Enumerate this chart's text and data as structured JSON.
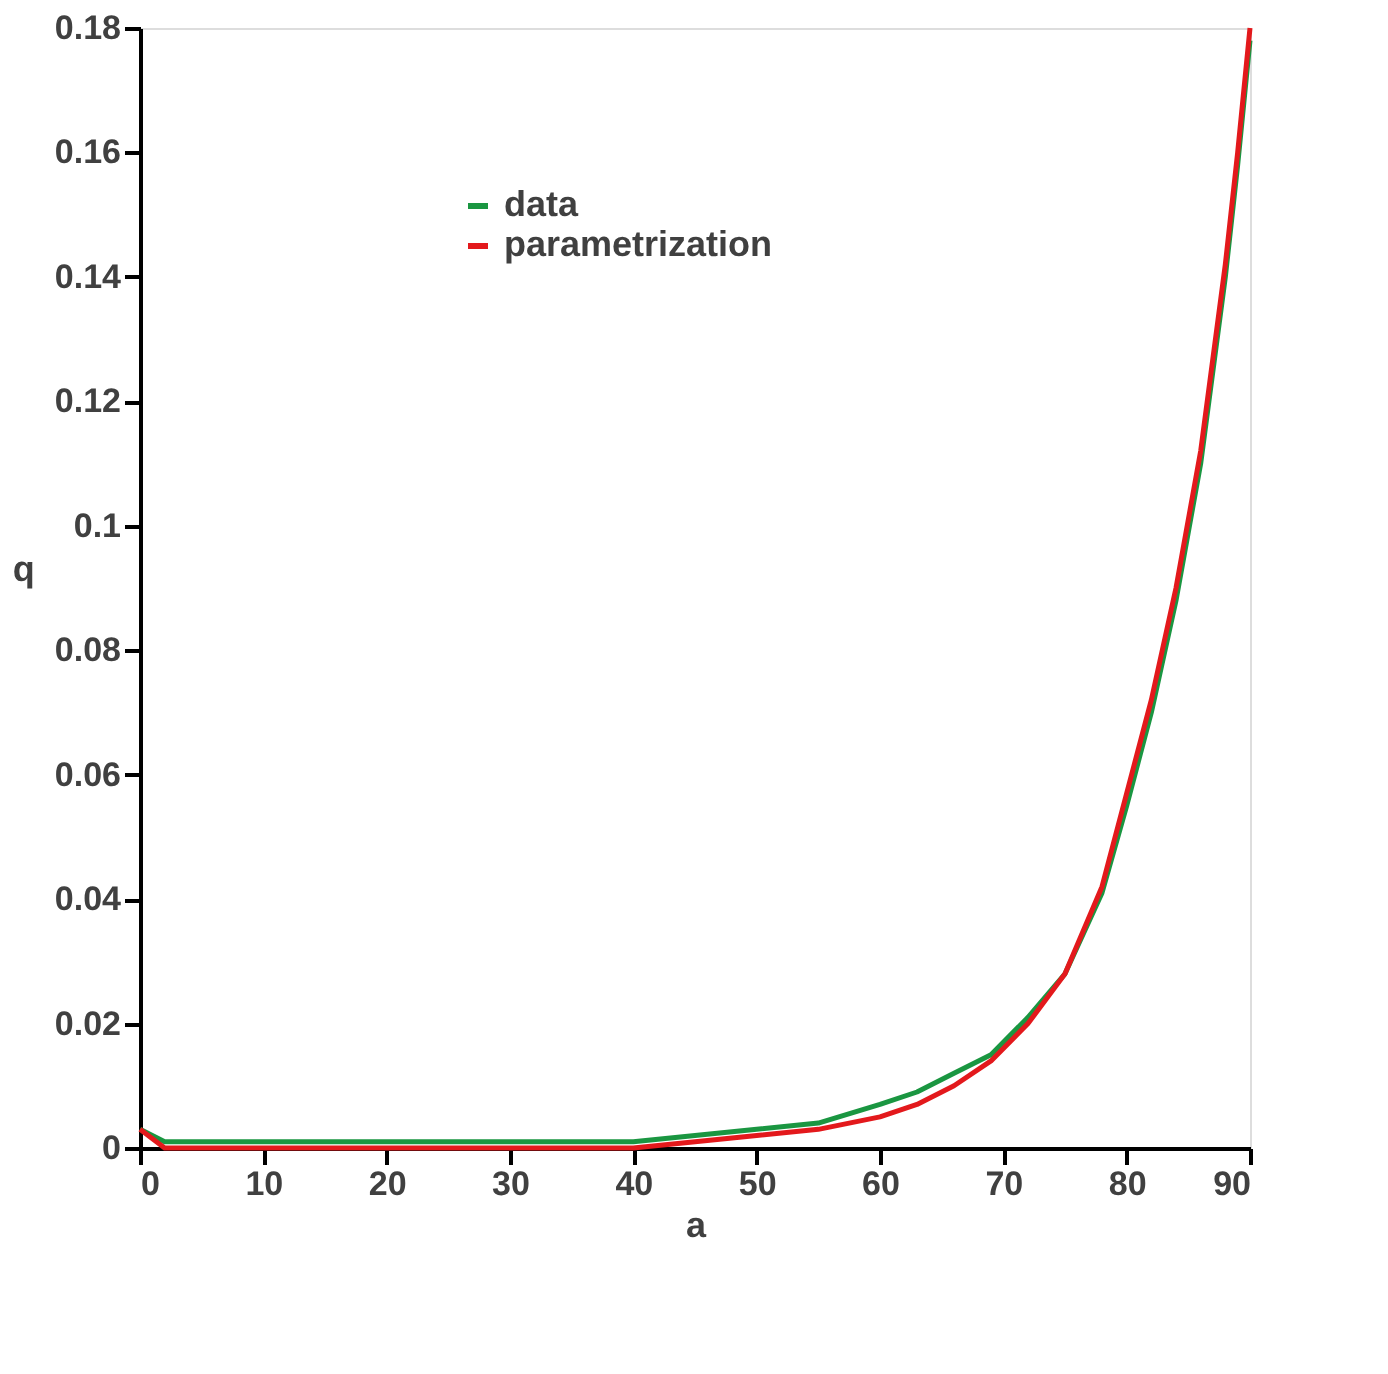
{
  "chart_data": {
    "type": "line",
    "xlabel": "a",
    "ylabel": "q",
    "xlim": [
      0,
      90
    ],
    "ylim": [
      0,
      0.18
    ],
    "xticks": [
      0,
      10,
      20,
      30,
      40,
      50,
      60,
      70,
      80,
      90
    ],
    "yticks": [
      0,
      0.02,
      0.04,
      0.06,
      0.08,
      0.1,
      0.12,
      0.14,
      0.16,
      0.18
    ],
    "x": [
      0,
      2,
      5,
      10,
      15,
      20,
      25,
      30,
      35,
      40,
      45,
      50,
      55,
      60,
      63,
      66,
      69,
      72,
      75,
      78,
      80,
      82,
      84,
      86,
      88,
      89,
      90
    ],
    "series": [
      {
        "name": "data",
        "color": "#1a9641",
        "values": [
          0.003,
          0.001,
          0.001,
          0.001,
          0.001,
          0.001,
          0.001,
          0.001,
          0.001,
          0.001,
          0.002,
          0.003,
          0.004,
          0.007,
          0.009,
          0.012,
          0.015,
          0.021,
          0.028,
          0.041,
          0.055,
          0.07,
          0.088,
          0.11,
          0.14,
          0.158,
          0.178
        ]
      },
      {
        "name": "parametrization",
        "color": "#e3191c",
        "values": [
          0.003,
          0.0,
          0.0,
          0.0,
          0.0,
          0.0,
          0.0,
          0.0,
          0.0,
          0.0,
          0.001,
          0.002,
          0.003,
          0.005,
          0.007,
          0.01,
          0.014,
          0.02,
          0.028,
          0.042,
          0.057,
          0.072,
          0.09,
          0.112,
          0.142,
          0.16,
          0.18
        ]
      }
    ],
    "legend": "top left",
    "grid": false,
    "marker": "none",
    "line_style": "solid"
  }
}
